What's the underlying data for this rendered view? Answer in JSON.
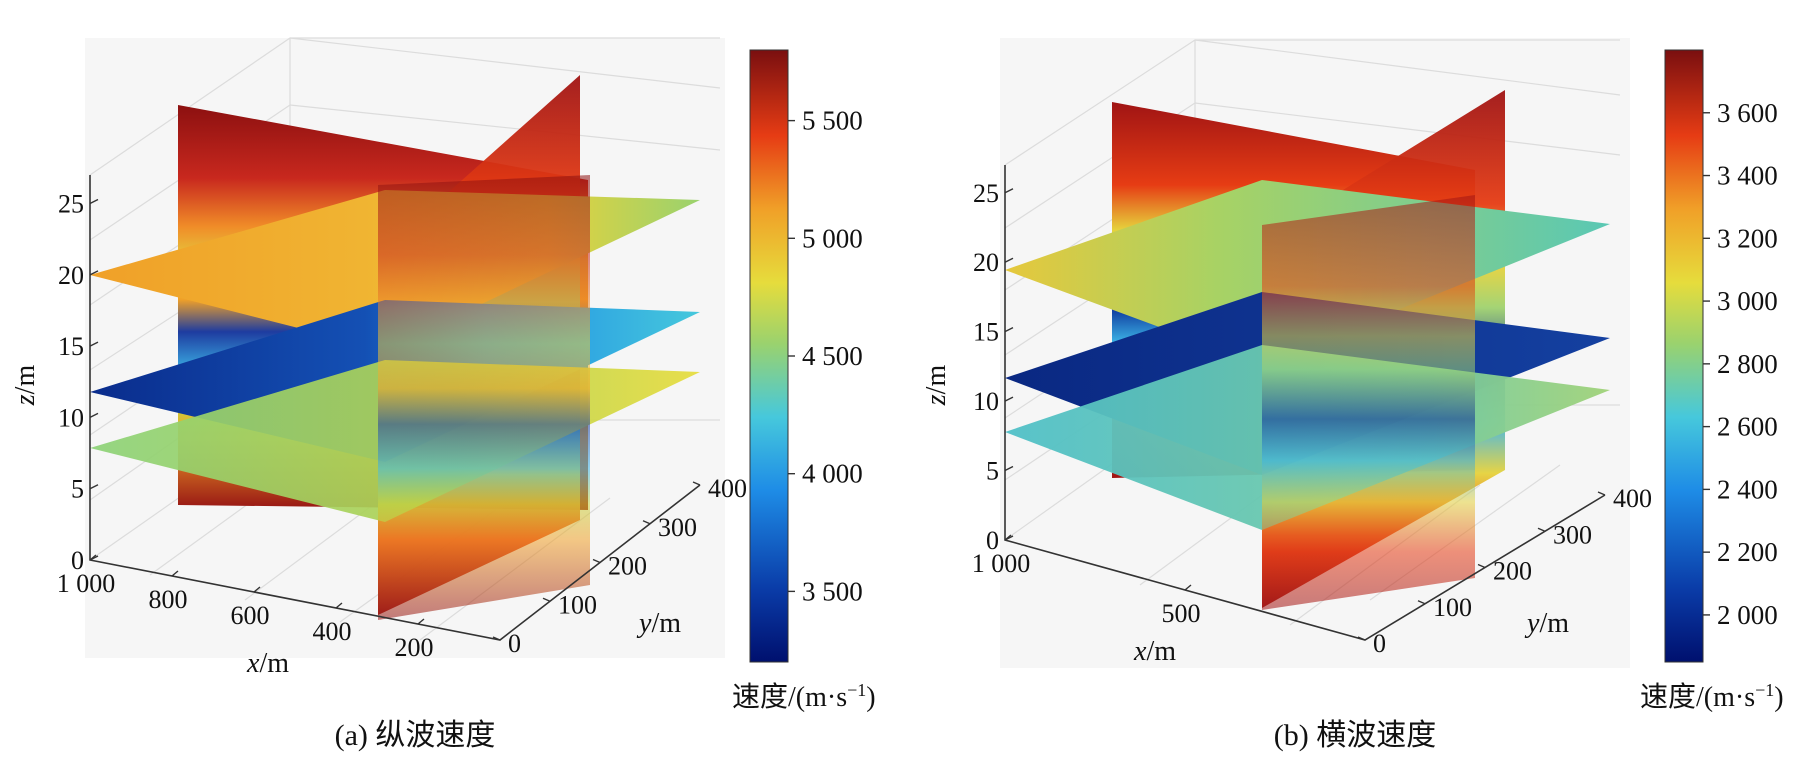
{
  "chart_data": [
    {
      "type": "heatmap",
      "subtype": "3d-slice",
      "caption": "(a) 纵波速度",
      "xlabel_var": "x",
      "xlabel_unit": "/m",
      "ylabel_var": "y",
      "ylabel_unit": "/m",
      "zlabel_var": "z",
      "zlabel_unit": "/m",
      "x_ticks": [
        "1 000",
        "800",
        "600",
        "400",
        "200"
      ],
      "y_ticks": [
        "0",
        "100",
        "200",
        "300",
        "400"
      ],
      "z_ticks": [
        "0",
        "5",
        "10",
        "15",
        "20",
        "25"
      ],
      "xlim": [
        0,
        1000
      ],
      "ylim": [
        0,
        400
      ],
      "zlim": [
        0,
        27
      ],
      "slice_z": [
        8,
        12,
        20
      ],
      "slice_x": 250,
      "slice_y": 300,
      "colorbar": {
        "label": "速度/(m·s",
        "label_sup": "−1",
        "label_close": ")",
        "ticks": [
          "5 500",
          "5 000",
          "4 500",
          "4 000",
          "3 500"
        ],
        "tick_values": [
          5500,
          5000,
          4500,
          4000,
          3500
        ],
        "range": [
          3200,
          5800
        ]
      },
      "grid": true
    },
    {
      "type": "heatmap",
      "subtype": "3d-slice",
      "caption": "(b) 横波速度",
      "xlabel_var": "x",
      "xlabel_unit": "/m",
      "ylabel_var": "y",
      "ylabel_unit": "/m",
      "zlabel_var": "z",
      "zlabel_unit": "/m",
      "x_ticks": [
        "1 000",
        "500"
      ],
      "y_ticks": [
        "0",
        "100",
        "200",
        "300",
        "400"
      ],
      "z_ticks": [
        "0",
        "5",
        "10",
        "15",
        "20",
        "25"
      ],
      "xlim": [
        0,
        1000
      ],
      "ylim": [
        0,
        400
      ],
      "zlim": [
        0,
        27
      ],
      "slice_z": [
        8,
        12,
        20
      ],
      "slice_x": 250,
      "slice_y": 300,
      "colorbar": {
        "label": "速度/(m·s",
        "label_sup": "−1",
        "label_close": ")",
        "ticks": [
          "3 600",
          "3 400",
          "3 200",
          "3 000",
          "2 800",
          "2 600",
          "2 400",
          "2 200",
          "2 000"
        ],
        "tick_values": [
          3600,
          3400,
          3200,
          3000,
          2800,
          2600,
          2400,
          2200,
          2000
        ],
        "range": [
          1850,
          3800
        ]
      },
      "grid": true
    }
  ],
  "colors": {
    "jet": [
      "#00008f",
      "#0030c8",
      "#1e78e6",
      "#3cc8e6",
      "#8cd278",
      "#e6e63c",
      "#f0a028",
      "#e63c14",
      "#a01414",
      "#7a0f0f"
    ]
  }
}
